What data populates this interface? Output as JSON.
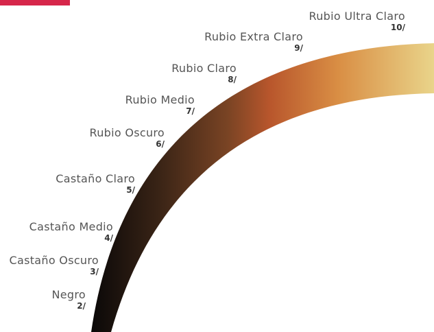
{
  "brand": {
    "accent_color": "#d6264a"
  },
  "levels": [
    {
      "name": "Rubio Ultra Claro",
      "code": "10/"
    },
    {
      "name": "Rubio Extra Claro",
      "code": "9/"
    },
    {
      "name": "Rubio Claro",
      "code": "8/"
    },
    {
      "name": "Rubio Medio",
      "code": "7/"
    },
    {
      "name": "Rubio Oscuro",
      "code": "6/"
    },
    {
      "name": "Castaño Claro",
      "code": "5/"
    },
    {
      "name": "Castaño Medio",
      "code": "4/"
    },
    {
      "name": "Castaño Oscuro",
      "code": "3/"
    },
    {
      "name": "Negro",
      "code": "2/"
    }
  ],
  "gradient_colors": [
    "#0a0808",
    "#3a2416",
    "#7a4424",
    "#b8562c",
    "#d98e44",
    "#e9d48a"
  ]
}
